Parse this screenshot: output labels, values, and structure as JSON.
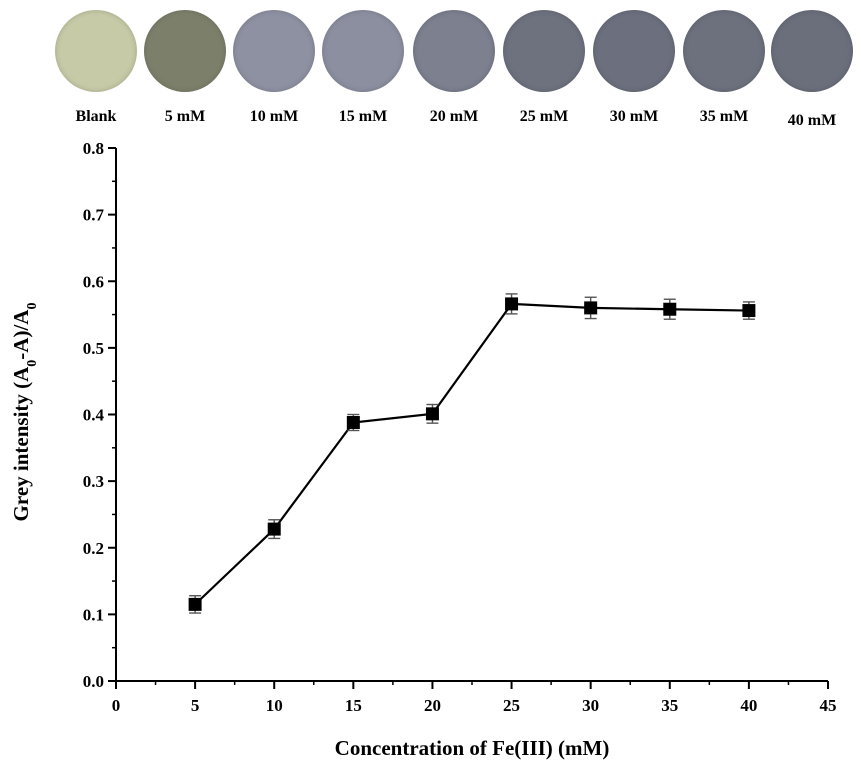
{
  "swatches": [
    {
      "label": "Blank",
      "color": "#c7caa7"
    },
    {
      "label": "5 mM",
      "color": "#7c806b"
    },
    {
      "label": "10 mM",
      "color": "#8e91a2"
    },
    {
      "label": "15 mM",
      "color": "#8b8fa0"
    },
    {
      "label": "20 mM",
      "color": "#7c808f"
    },
    {
      "label": "25 mM",
      "color": "#6e727f"
    },
    {
      "label": "30 mM",
      "color": "#6c707e"
    },
    {
      "label": "35 mM",
      "color": "#6d717e"
    },
    {
      "label": "40 mM",
      "color": "#6b6f7c"
    }
  ],
  "chart_data": {
    "type": "line",
    "x": [
      5,
      10,
      15,
      20,
      25,
      30,
      35,
      40
    ],
    "series": [
      {
        "values": [
          0.115,
          0.228,
          0.388,
          0.401,
          0.566,
          0.56,
          0.558,
          0.556
        ],
        "error": [
          0.013,
          0.014,
          0.012,
          0.014,
          0.015,
          0.016,
          0.015,
          0.013
        ],
        "marker": "square",
        "color": "#000000"
      }
    ],
    "xlabel": "Concentration of Fe(III) (mM)",
    "ylabel": "Grey  intensity (A0-A)/A0",
    "xlim": [
      0,
      45
    ],
    "ylim": [
      0.0,
      0.8
    ],
    "xticks": [
      "0",
      "5",
      "10",
      "15",
      "20",
      "25",
      "30",
      "35",
      "40",
      "45"
    ],
    "yticks": [
      "0.0",
      "0.1",
      "0.2",
      "0.3",
      "0.4",
      "0.5",
      "0.6",
      "0.7",
      "0.8"
    ],
    "grid": false,
    "legend": "none"
  }
}
